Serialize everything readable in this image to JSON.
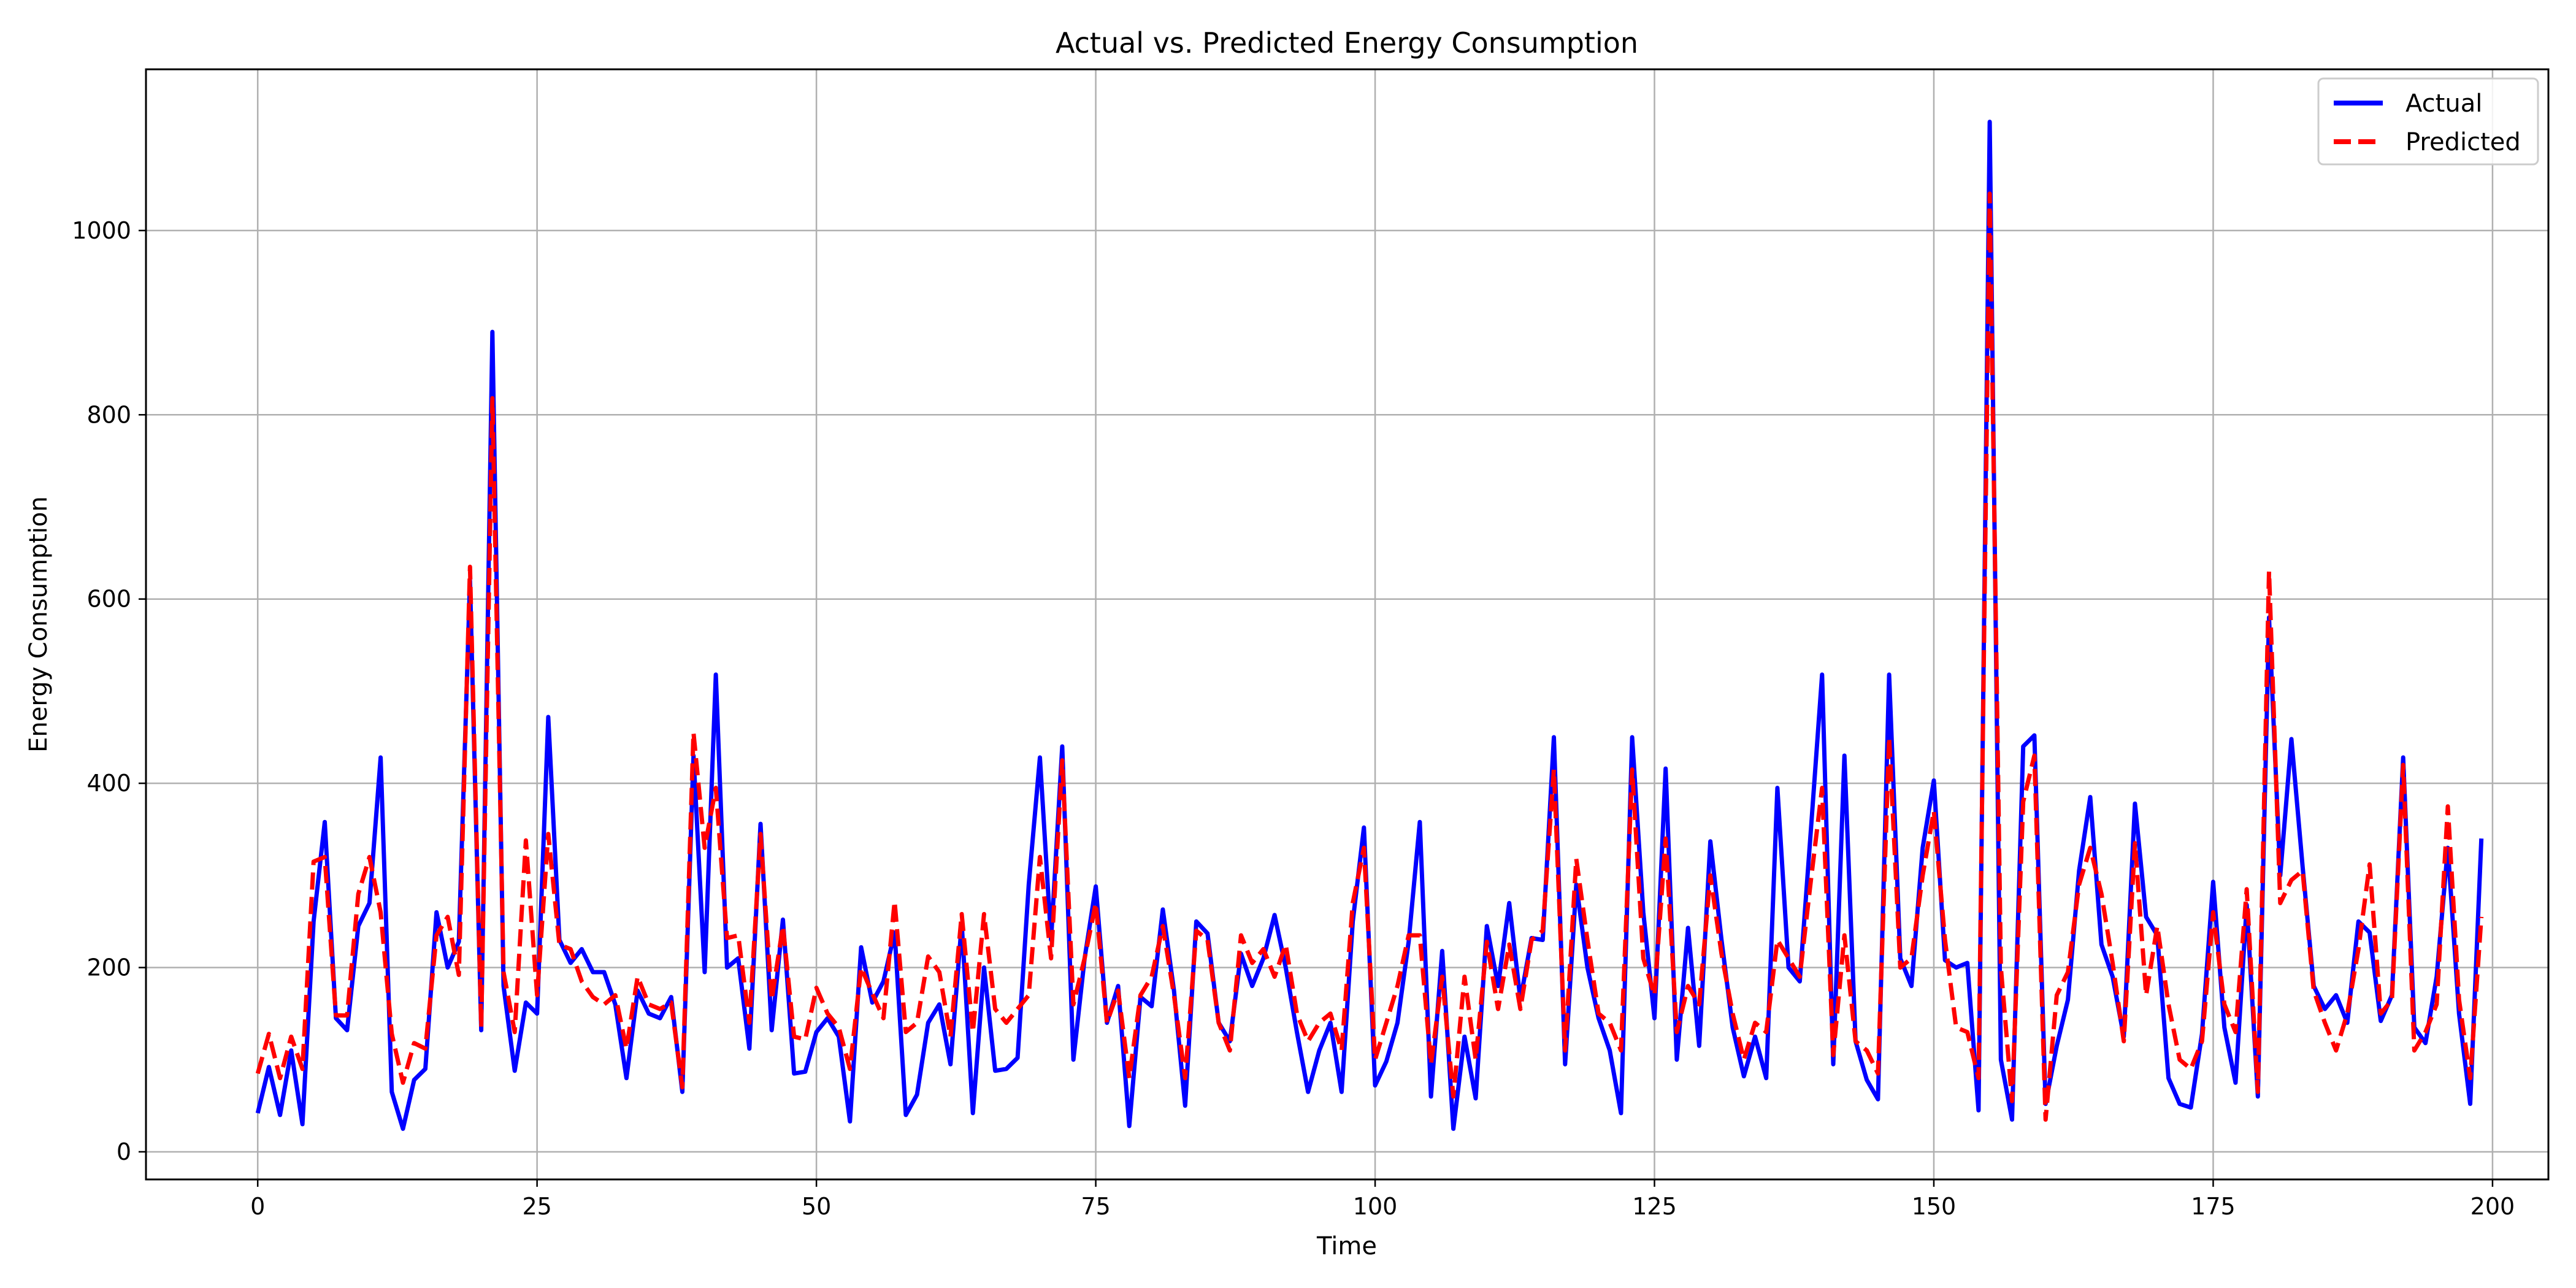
{
  "chart_data": {
    "type": "line",
    "title": "Actual vs. Predicted Energy Consumption",
    "xlabel": "Time",
    "ylabel": "Energy Consumption",
    "xlim": [
      -10,
      205
    ],
    "ylim": [
      -30,
      1175
    ],
    "xticks": [
      0,
      25,
      50,
      75,
      100,
      125,
      150,
      175,
      200
    ],
    "yticks": [
      0,
      200,
      400,
      600,
      800,
      1000
    ],
    "grid": true,
    "legend_position": "top-right",
    "series": [
      {
        "name": "Actual",
        "color": "#0000ff",
        "style": "solid",
        "values": [
          42,
          92,
          40,
          110,
          30,
          250,
          358,
          145,
          132,
          245,
          270,
          428,
          65,
          25,
          78,
          90,
          260,
          200,
          228,
          620,
          132,
          890,
          180,
          88,
          162,
          150,
          472,
          230,
          205,
          220,
          195,
          195,
          160,
          80,
          175,
          150,
          145,
          168,
          65,
          430,
          195,
          518,
          200,
          210,
          112,
          356,
          132,
          252,
          85,
          87,
          130,
          145,
          125,
          33,
          222,
          162,
          185,
          238,
          40,
          62,
          140,
          160,
          95,
          248,
          42,
          200,
          88,
          90,
          102,
          290,
          428,
          230,
          440,
          100,
          210,
          288,
          140,
          180,
          28,
          168,
          158,
          263,
          175,
          50,
          250,
          237,
          140,
          120,
          215,
          180,
          210,
          257,
          200,
          130,
          65,
          110,
          140,
          65,
          250,
          352,
          72,
          98,
          140,
          228,
          358,
          60,
          218,
          25,
          125,
          58,
          245,
          180,
          270,
          165,
          232,
          230,
          450,
          95,
          290,
          200,
          145,
          110,
          42,
          450,
          260,
          145,
          416,
          100,
          243,
          115,
          337,
          230,
          135,
          82,
          125,
          80,
          395,
          200,
          185,
          350,
          518,
          95,
          430,
          120,
          78,
          57,
          518,
          210,
          180,
          330,
          403,
          208,
          200,
          205,
          45,
          1118,
          100,
          35,
          440,
          452,
          52,
          115,
          165,
          305,
          385,
          225,
          190,
          125,
          378,
          255,
          235,
          80,
          52,
          48,
          128,
          293,
          135,
          75,
          268,
          60,
          580,
          300,
          448,
          310,
          180,
          155,
          170,
          140,
          250,
          238,
          142,
          170,
          428,
          135,
          118,
          190,
          330,
          150,
          52,
          340
        ]
      },
      {
        "name": "Predicted",
        "color": "#ff0000",
        "style": "dashed",
        "values": [
          85,
          128,
          80,
          125,
          90,
          315,
          320,
          148,
          148,
          280,
          320,
          260,
          128,
          75,
          118,
          112,
          235,
          255,
          192,
          635,
          135,
          818,
          195,
          130,
          338,
          170,
          345,
          225,
          220,
          185,
          168,
          160,
          170,
          112,
          190,
          160,
          155,
          162,
          70,
          455,
          330,
          395,
          232,
          235,
          140,
          345,
          165,
          245,
          125,
          122,
          178,
          150,
          135,
          90,
          200,
          172,
          145,
          272,
          130,
          140,
          212,
          195,
          125,
          258,
          130,
          258,
          155,
          140,
          155,
          170,
          320,
          210,
          425,
          160,
          210,
          270,
          140,
          175,
          80,
          170,
          190,
          245,
          170,
          80,
          240,
          230,
          140,
          110,
          235,
          205,
          220,
          190,
          225,
          150,
          120,
          140,
          150,
          110,
          270,
          330,
          100,
          140,
          180,
          235,
          235,
          95,
          190,
          60,
          190,
          100,
          228,
          155,
          225,
          155,
          230,
          240,
          415,
          110,
          318,
          230,
          150,
          140,
          110,
          415,
          210,
          170,
          340,
          130,
          180,
          160,
          300,
          215,
          150,
          100,
          140,
          130,
          230,
          210,
          190,
          295,
          395,
          105,
          235,
          120,
          110,
          85,
          450,
          200,
          210,
          300,
          370,
          230,
          135,
          130,
          80,
          1040,
          200,
          55,
          380,
          430,
          35,
          170,
          195,
          290,
          330,
          280,
          205,
          120,
          335,
          170,
          245,
          160,
          100,
          90,
          120,
          260,
          160,
          130,
          285,
          65,
          630,
          270,
          295,
          305,
          175,
          140,
          110,
          150,
          220,
          312,
          150,
          165,
          420,
          110,
          130,
          160,
          375,
          165,
          80,
          255
        ]
      }
    ]
  }
}
